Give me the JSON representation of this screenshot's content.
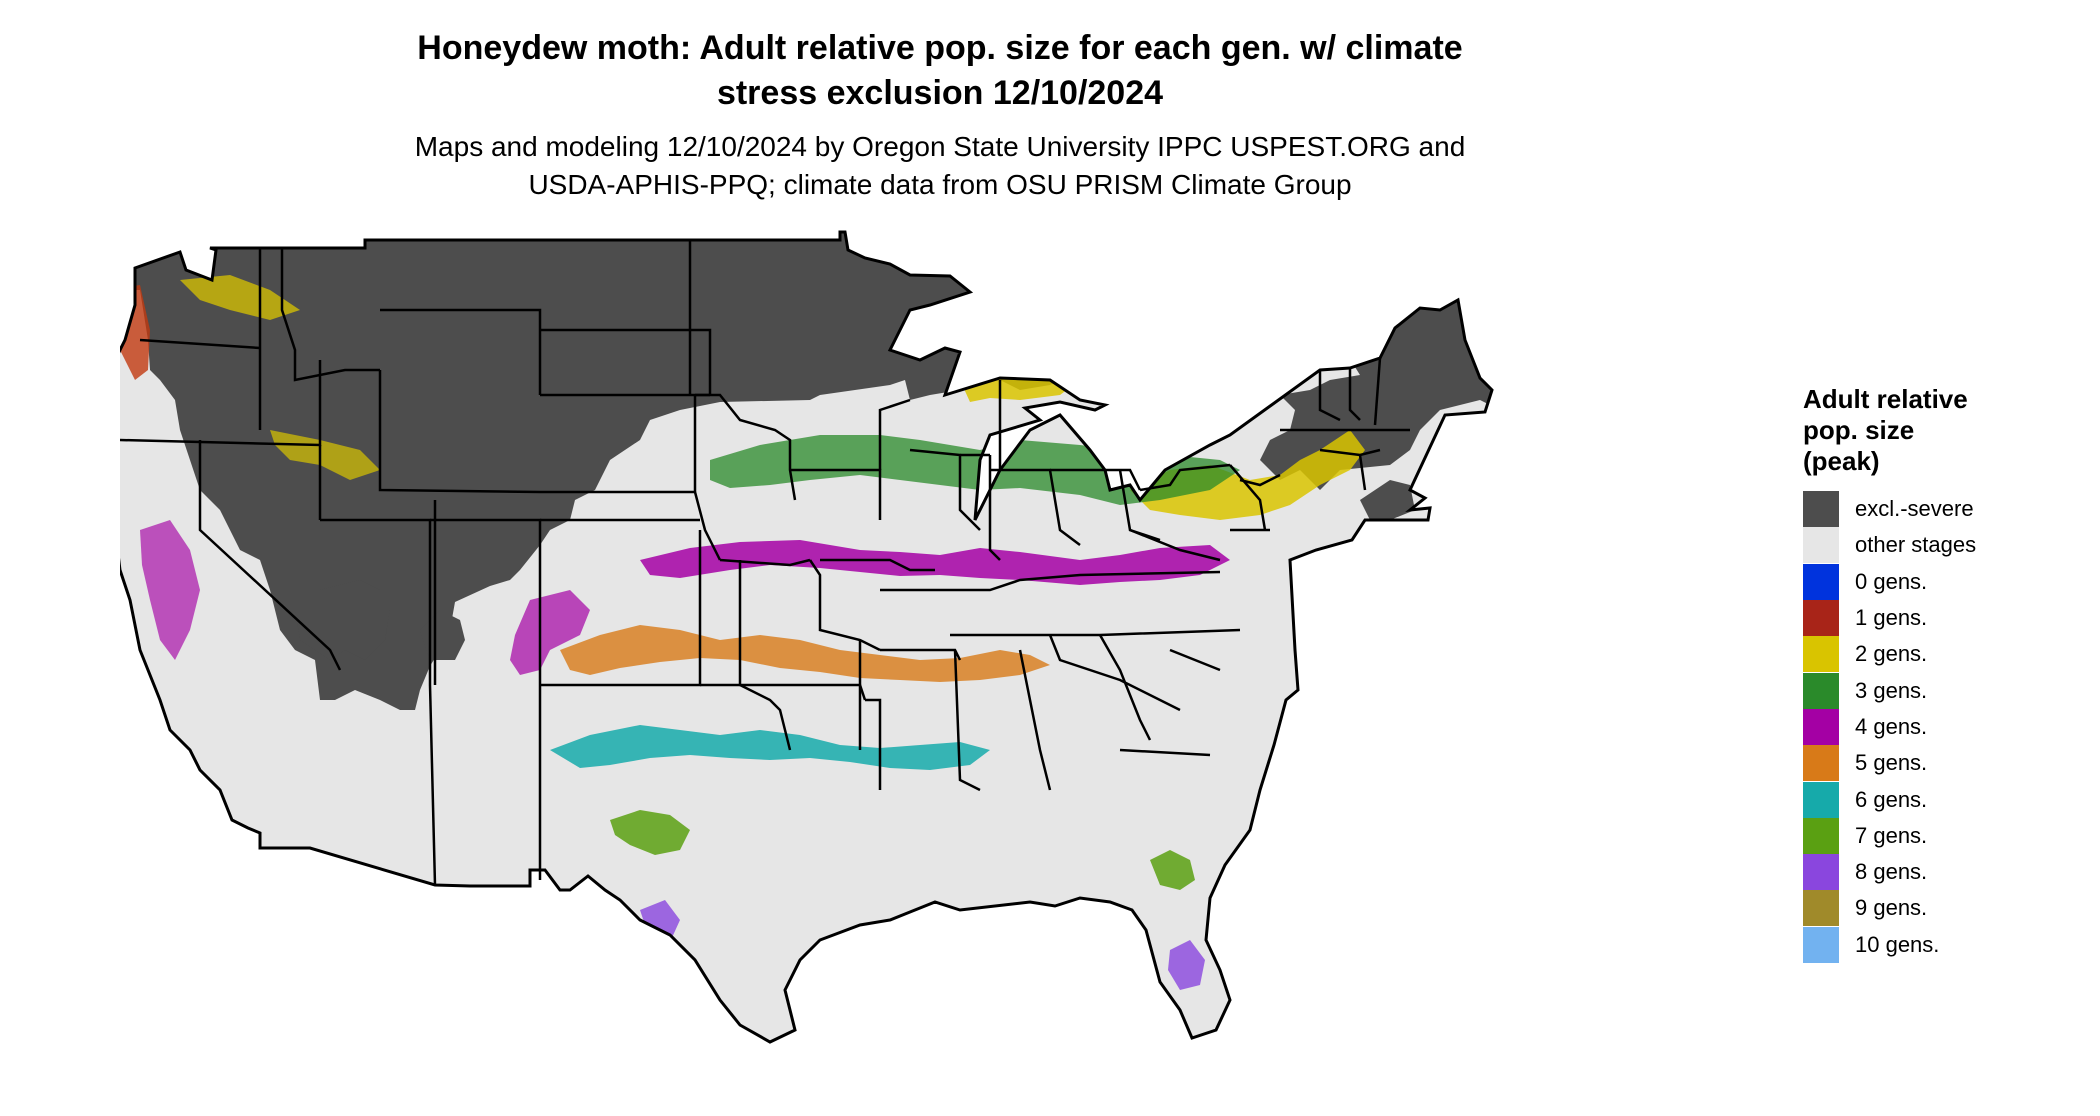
{
  "title": "Honeydew moth: Adult relative pop. size for each gen. w/ climate\nstress exclusion 12/10/2024",
  "subtitle": "Maps and modeling 12/10/2024 by Oregon State University IPPC USPEST.ORG and\nUSDA-APHIS-PPQ; climate data from OSU PRISM Climate Group",
  "map": {
    "region": "Contiguous United States",
    "base_color": "#e6e6e6",
    "excluded_color": "#4d4d4d",
    "border_color": "#000000"
  },
  "legend": {
    "title": "Adult relative\npop. size\n(peak)",
    "items": [
      {
        "label": "excl.-severe",
        "color": "#4d4d4d"
      },
      {
        "label": "other stages",
        "color": "#e6e6e6"
      },
      {
        "label": "0 gens.",
        "color": "#0033dd"
      },
      {
        "label": "1 gens.",
        "color": "#a82418"
      },
      {
        "label": "2 gens.",
        "color": "#d9c400"
      },
      {
        "label": "3 gens.",
        "color": "#2a8a2a"
      },
      {
        "label": "4 gens.",
        "color": "#a400a4"
      },
      {
        "label": "5 gens.",
        "color": "#d87a18"
      },
      {
        "label": "6 gens.",
        "color": "#16aaaa"
      },
      {
        "label": "7 gens.",
        "color": "#5aa012"
      },
      {
        "label": "8 gens.",
        "color": "#8a46de"
      },
      {
        "label": "9 gens.",
        "color": "#a08a2a"
      },
      {
        "label": "10 gens.",
        "color": "#72b2f0"
      }
    ]
  }
}
